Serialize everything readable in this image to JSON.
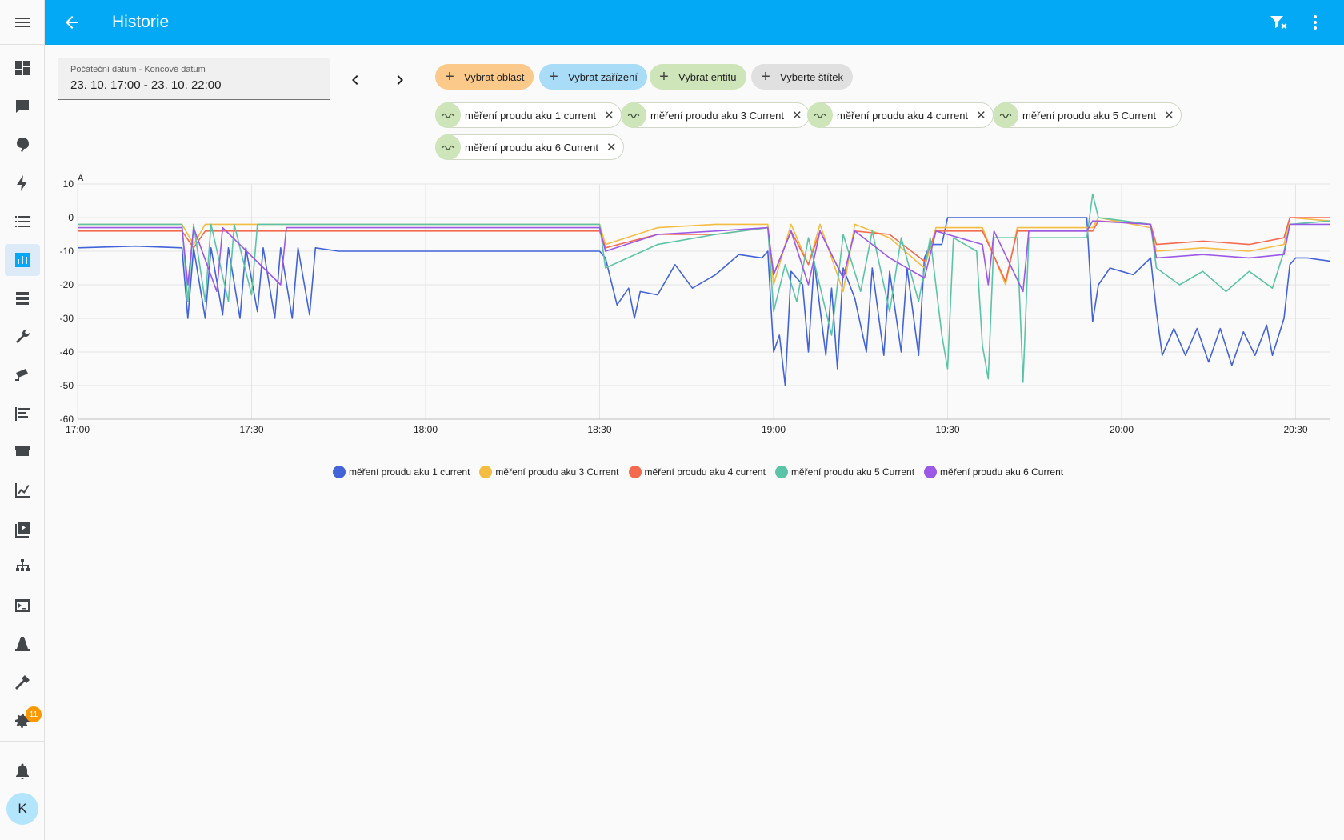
{
  "header": {
    "title": "Historie"
  },
  "sidebar": {
    "items": [
      {
        "name": "dashboard-icon"
      },
      {
        "name": "map-icon"
      },
      {
        "name": "energy-leaf-icon"
      },
      {
        "name": "lightning-icon"
      },
      {
        "name": "logbook-icon"
      },
      {
        "name": "history-icon",
        "active": true
      },
      {
        "name": "media-icon"
      },
      {
        "name": "wrench-icon"
      },
      {
        "name": "cctv-icon"
      },
      {
        "name": "list-icon"
      },
      {
        "name": "hacs-icon"
      },
      {
        "name": "chart-icon"
      },
      {
        "name": "media-browser-icon"
      },
      {
        "name": "network-icon"
      },
      {
        "name": "terminal-icon"
      },
      {
        "name": "cone-icon"
      },
      {
        "name": "hammer-icon"
      },
      {
        "name": "settings-icon",
        "badge": "11"
      }
    ],
    "notifications_icon": "bell-icon",
    "avatar_initial": "K"
  },
  "date_range": {
    "label": "Počáteční datum - Koncové datum",
    "value": "23. 10. 17:00 - 23. 10. 22:00"
  },
  "pickers": {
    "area": "Vybrat oblast",
    "device": "Vybrat zařízení",
    "entity": "Vybrat entitu",
    "label": "Vyberte štítek"
  },
  "entities": [
    "měření proudu aku 1 current",
    "měření proudu aku 3 Current",
    "měření proudu aku 4 current",
    "měření proudu aku 5 Current",
    "měření proudu aku 6 Current"
  ],
  "colors": {
    "accent": "#03a9f4",
    "area_chip": "#fbc98a",
    "device_chip": "#a8dcf7",
    "entity_chip": "#cde5b9",
    "label_chip": "#e0e0e0"
  },
  "chart_data": {
    "type": "line",
    "ylabel": "A",
    "ylim": [
      -60,
      10
    ],
    "yticks": [
      10,
      0,
      -10,
      -20,
      -30,
      -40,
      -50,
      -60
    ],
    "x_start": "17:00",
    "x_end": "20:36",
    "xticks": [
      "17:00",
      "17:30",
      "18:00",
      "18:30",
      "19:00",
      "19:30",
      "20:00",
      "20:30"
    ],
    "grid": true,
    "legend_position": "bottom",
    "series": [
      {
        "name": "měření proudu aku 1 current",
        "color": "#4363d8",
        "points": [
          [
            "17:00",
            -9
          ],
          [
            "17:10",
            -8.5
          ],
          [
            "17:18",
            -9
          ],
          [
            "17:19",
            -30
          ],
          [
            "17:20",
            -9
          ],
          [
            "17:22",
            -30
          ],
          [
            "17:23",
            -9
          ],
          [
            "17:25",
            -29
          ],
          [
            "17:26",
            -9
          ],
          [
            "17:28",
            -30
          ],
          [
            "17:29",
            -9
          ],
          [
            "17:31",
            -28
          ],
          [
            "17:32",
            -9
          ],
          [
            "17:34",
            -30
          ],
          [
            "17:35",
            -9
          ],
          [
            "17:37",
            -30
          ],
          [
            "17:38",
            -9
          ],
          [
            "17:40",
            -29
          ],
          [
            "17:41",
            -9
          ],
          [
            "17:45",
            -10
          ],
          [
            "18:00",
            -10
          ],
          [
            "18:15",
            -10
          ],
          [
            "18:30",
            -10
          ],
          [
            "18:31",
            -12
          ],
          [
            "18:32",
            -19
          ],
          [
            "18:33",
            -26
          ],
          [
            "18:35",
            -21
          ],
          [
            "18:36",
            -30
          ],
          [
            "18:37",
            -22
          ],
          [
            "18:40",
            -23
          ],
          [
            "18:43",
            -14
          ],
          [
            "18:46",
            -21
          ],
          [
            "18:50",
            -17
          ],
          [
            "18:54",
            -11
          ],
          [
            "18:58",
            -12
          ],
          [
            "18:59",
            -10
          ],
          [
            "19:00",
            -40
          ],
          [
            "19:01",
            -35
          ],
          [
            "19:02",
            -50
          ],
          [
            "19:03",
            -16
          ],
          [
            "19:05",
            -20
          ],
          [
            "19:06",
            -40
          ],
          [
            "19:07",
            -13
          ],
          [
            "19:09",
            -41
          ],
          [
            "19:10",
            -21
          ],
          [
            "19:11",
            -45
          ],
          [
            "19:12",
            -15
          ],
          [
            "19:14",
            -24
          ],
          [
            "19:16",
            -40
          ],
          [
            "19:17",
            -15
          ],
          [
            "19:19",
            -41
          ],
          [
            "19:20",
            -16
          ],
          [
            "19:22",
            -40
          ],
          [
            "19:23",
            -15
          ],
          [
            "19:25",
            -41
          ],
          [
            "19:26",
            -12
          ],
          [
            "19:27",
            -8
          ],
          [
            "19:29",
            -8
          ],
          [
            "19:30",
            0
          ],
          [
            "19:45",
            0
          ],
          [
            "19:54",
            0
          ],
          [
            "19:55",
            -31
          ],
          [
            "19:56",
            -20
          ],
          [
            "19:58",
            -15
          ],
          [
            "20:02",
            -17
          ],
          [
            "20:05",
            -12
          ],
          [
            "20:06",
            -28
          ],
          [
            "20:07",
            -41
          ],
          [
            "20:09",
            -33
          ],
          [
            "20:11",
            -41
          ],
          [
            "20:13",
            -33
          ],
          [
            "20:15",
            -43
          ],
          [
            "20:17",
            -33
          ],
          [
            "20:19",
            -44
          ],
          [
            "20:21",
            -34
          ],
          [
            "20:23",
            -41
          ],
          [
            "20:25",
            -32
          ],
          [
            "20:26",
            -41
          ],
          [
            "20:28",
            -30
          ],
          [
            "20:29",
            -14
          ],
          [
            "20:30",
            -12
          ],
          [
            "20:32",
            -12
          ],
          [
            "20:36",
            -13
          ]
        ]
      },
      {
        "name": "měření proudu aku 3 Current",
        "color": "#f5bc42",
        "points": [
          [
            "17:00",
            -2
          ],
          [
            "17:18",
            -2
          ],
          [
            "17:20",
            -8
          ],
          [
            "17:22",
            -2
          ],
          [
            "17:30",
            -2
          ],
          [
            "17:45",
            -2
          ],
          [
            "18:00",
            -2
          ],
          [
            "18:15",
            -2
          ],
          [
            "18:30",
            -2
          ],
          [
            "18:31",
            -8
          ],
          [
            "18:40",
            -3
          ],
          [
            "18:50",
            -2
          ],
          [
            "18:59",
            -2
          ],
          [
            "19:00",
            -20
          ],
          [
            "19:03",
            -2
          ],
          [
            "19:06",
            -14
          ],
          [
            "19:08",
            -2
          ],
          [
            "19:12",
            -22
          ],
          [
            "19:14",
            -2
          ],
          [
            "19:20",
            -6
          ],
          [
            "19:26",
            -15
          ],
          [
            "19:28",
            -3
          ],
          [
            "19:36",
            -3
          ],
          [
            "19:40",
            -20
          ],
          [
            "19:42",
            -3
          ],
          [
            "19:55",
            -3
          ],
          [
            "19:56",
            0
          ],
          [
            "20:05",
            -3
          ],
          [
            "20:06",
            -10
          ],
          [
            "20:14",
            -9
          ],
          [
            "20:22",
            -10
          ],
          [
            "20:28",
            -8
          ],
          [
            "20:29",
            0
          ],
          [
            "20:36",
            -1
          ]
        ]
      },
      {
        "name": "měření proudu aku 4 current",
        "color": "#f46a4e",
        "points": [
          [
            "17:00",
            -4
          ],
          [
            "17:18",
            -4
          ],
          [
            "17:20",
            -9
          ],
          [
            "17:22",
            -4
          ],
          [
            "17:30",
            -4
          ],
          [
            "17:45",
            -4
          ],
          [
            "18:00",
            -4
          ],
          [
            "18:15",
            -4
          ],
          [
            "18:30",
            -4
          ],
          [
            "18:31",
            -9
          ],
          [
            "18:40",
            -5
          ],
          [
            "18:50",
            -5
          ],
          [
            "18:59",
            -3
          ],
          [
            "19:00",
            -17
          ],
          [
            "19:03",
            -4
          ],
          [
            "19:06",
            -14
          ],
          [
            "19:08",
            -4
          ],
          [
            "19:12",
            -18
          ],
          [
            "19:14",
            -4
          ],
          [
            "19:20",
            -5
          ],
          [
            "19:26",
            -13
          ],
          [
            "19:28",
            -4
          ],
          [
            "19:36",
            -4
          ],
          [
            "19:40",
            -19
          ],
          [
            "19:42",
            -4
          ],
          [
            "19:55",
            -4
          ],
          [
            "19:56",
            -1
          ],
          [
            "20:05",
            -2
          ],
          [
            "20:06",
            -8
          ],
          [
            "20:14",
            -7
          ],
          [
            "20:22",
            -8
          ],
          [
            "20:28",
            -6
          ],
          [
            "20:29",
            0
          ],
          [
            "20:36",
            0
          ]
        ]
      },
      {
        "name": "měření proudu aku 5 Current",
        "color": "#5bc4a6",
        "points": [
          [
            "17:00",
            -2
          ],
          [
            "17:18",
            -2
          ],
          [
            "17:19",
            -25
          ],
          [
            "17:20",
            -2
          ],
          [
            "17:22",
            -25
          ],
          [
            "17:23",
            -2
          ],
          [
            "17:26",
            -25
          ],
          [
            "17:27",
            -2
          ],
          [
            "17:30",
            -23
          ],
          [
            "17:31",
            -2
          ],
          [
            "17:45",
            -2
          ],
          [
            "18:00",
            -2
          ],
          [
            "18:30",
            -2
          ],
          [
            "18:31",
            -15
          ],
          [
            "18:40",
            -8
          ],
          [
            "18:50",
            -5
          ],
          [
            "18:59",
            -3
          ],
          [
            "19:00",
            -28
          ],
          [
            "19:02",
            -14
          ],
          [
            "19:04",
            -25
          ],
          [
            "19:06",
            -6
          ],
          [
            "19:10",
            -35
          ],
          [
            "19:12",
            -5
          ],
          [
            "19:15",
            -22
          ],
          [
            "19:17",
            -4
          ],
          [
            "19:20",
            -28
          ],
          [
            "19:22",
            -6
          ],
          [
            "19:25",
            -25
          ],
          [
            "19:27",
            -6
          ],
          [
            "19:29",
            -35
          ],
          [
            "19:30",
            -45
          ],
          [
            "19:31",
            -6
          ],
          [
            "19:35",
            -10
          ],
          [
            "19:36",
            -38
          ],
          [
            "19:37",
            -48
          ],
          [
            "19:38",
            -6
          ],
          [
            "19:42",
            -6
          ],
          [
            "19:43",
            -49
          ],
          [
            "19:44",
            -6
          ],
          [
            "19:54",
            -6
          ],
          [
            "19:55",
            7
          ],
          [
            "19:56",
            0
          ],
          [
            "20:05",
            -2
          ],
          [
            "20:06",
            -15
          ],
          [
            "20:10",
            -20
          ],
          [
            "20:14",
            -16
          ],
          [
            "20:18",
            -22
          ],
          [
            "20:22",
            -16
          ],
          [
            "20:26",
            -21
          ],
          [
            "20:28",
            -10
          ],
          [
            "20:29",
            -2
          ],
          [
            "20:36",
            -1
          ]
        ]
      },
      {
        "name": "měření proudu aku 6 Current",
        "color": "#9b59e6",
        "points": [
          [
            "17:00",
            -3
          ],
          [
            "17:18",
            -3
          ],
          [
            "17:19",
            -20
          ],
          [
            "17:20",
            -3
          ],
          [
            "17:24",
            -22
          ],
          [
            "17:25",
            -3
          ],
          [
            "17:35",
            -20
          ],
          [
            "17:36",
            -3
          ],
          [
            "17:45",
            -3
          ],
          [
            "18:00",
            -3
          ],
          [
            "18:30",
            -3
          ],
          [
            "18:31",
            -10
          ],
          [
            "18:40",
            -5
          ],
          [
            "18:50",
            -4
          ],
          [
            "18:59",
            -3
          ],
          [
            "19:00",
            -17
          ],
          [
            "19:03",
            -4
          ],
          [
            "19:06",
            -20
          ],
          [
            "19:08",
            -4
          ],
          [
            "19:12",
            -18
          ],
          [
            "19:14",
            -4
          ],
          [
            "19:20",
            -12
          ],
          [
            "19:26",
            -18
          ],
          [
            "19:28",
            -4
          ],
          [
            "19:36",
            -8
          ],
          [
            "19:37",
            -20
          ],
          [
            "19:38",
            -4
          ],
          [
            "19:43",
            -22
          ],
          [
            "19:44",
            -4
          ],
          [
            "19:54",
            -4
          ],
          [
            "19:55",
            -1
          ],
          [
            "20:05",
            -2
          ],
          [
            "20:06",
            -12
          ],
          [
            "20:14",
            -11
          ],
          [
            "20:22",
            -12
          ],
          [
            "20:28",
            -11
          ],
          [
            "20:29",
            -2
          ],
          [
            "20:36",
            -2
          ]
        ]
      }
    ]
  }
}
